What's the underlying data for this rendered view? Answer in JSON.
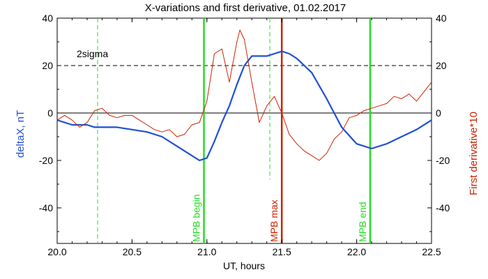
{
  "chart_data": {
    "type": "line",
    "title": "X-variations and first derivative, 01.02.2017",
    "xlabel": "UT, hours",
    "ylabel_left": "deltaX, nT",
    "ylabel_right": "First derivative*10",
    "xlim": [
      20.0,
      22.5
    ],
    "ylim": [
      -55,
      40
    ],
    "xticks": [
      "20.0",
      "20.5",
      "21.0",
      "21.5",
      "22.0",
      "22.5"
    ],
    "yticks_left": [
      "-40",
      "-20",
      "0",
      "20",
      "40"
    ],
    "yticks_right": [
      "-40",
      "-20",
      "0",
      "20",
      "40"
    ],
    "colors": {
      "deltaX": "#1f4fd6",
      "derivative": "#cc2200",
      "green": "#22dd22",
      "red_marker": "#cc2200",
      "axes": "#000000"
    },
    "reference_lines": {
      "zero": 0,
      "sigma_level": 20,
      "sigma_label": "2sigma"
    },
    "markers": [
      {
        "x": 20.98,
        "label": "MPB begin",
        "color": "#22dd22",
        "style": "solid"
      },
      {
        "x": 21.5,
        "label": "MPB max",
        "color": "#cc2200",
        "style": "solid"
      },
      {
        "x": 22.09,
        "label": "MPB end",
        "color": "#22dd22",
        "style": "solid"
      }
    ],
    "dashed_verticals": [
      {
        "x": 20.27,
        "color": "#22dd22",
        "ymin": -55,
        "ymax": 40
      },
      {
        "x": 21.42,
        "color": "#22dd22",
        "ymin": -28,
        "ymax": 40
      }
    ],
    "series": [
      {
        "name": "deltaX",
        "x": [
          20.0,
          20.1,
          20.2,
          20.25,
          20.3,
          20.4,
          20.5,
          20.6,
          20.7,
          20.8,
          20.9,
          20.95,
          21.0,
          21.05,
          21.1,
          21.15,
          21.2,
          21.25,
          21.3,
          21.35,
          21.4,
          21.45,
          21.5,
          21.55,
          21.6,
          21.7,
          21.8,
          21.9,
          22.0,
          22.1,
          22.2,
          22.3,
          22.4,
          22.5
        ],
        "values": [
          -3,
          -5,
          -5,
          -6,
          -6,
          -6,
          -7,
          -8,
          -10,
          -14,
          -18,
          -20,
          -19,
          -12,
          -4,
          3,
          12,
          20,
          24,
          24,
          24,
          25,
          26,
          25,
          23,
          17,
          6,
          -6,
          -13,
          -15,
          -13,
          -10,
          -7,
          -3
        ]
      },
      {
        "name": "derivative",
        "x": [
          20.0,
          20.05,
          20.1,
          20.15,
          20.2,
          20.25,
          20.3,
          20.35,
          20.4,
          20.45,
          20.5,
          20.55,
          20.6,
          20.65,
          20.7,
          20.75,
          20.8,
          20.85,
          20.9,
          20.95,
          21.0,
          21.05,
          21.1,
          21.15,
          21.2,
          21.22,
          21.25,
          21.3,
          21.35,
          21.4,
          21.45,
          21.5,
          21.55,
          21.6,
          21.65,
          21.7,
          21.75,
          21.8,
          21.85,
          21.9,
          21.95,
          22.0,
          22.05,
          22.1,
          22.15,
          22.2,
          22.25,
          22.3,
          22.35,
          22.4,
          22.45,
          22.5
        ],
        "values": [
          -3,
          -1,
          -3,
          -6,
          -4,
          1,
          2,
          -1,
          -2,
          -1,
          -1,
          -3,
          -5,
          -7,
          -8,
          -7,
          -10,
          -9,
          -5,
          -4,
          5,
          25,
          27,
          13,
          30,
          35,
          31,
          13,
          -4,
          3,
          7,
          0,
          -9,
          -13,
          -16,
          -18,
          -20,
          -17,
          -11,
          -8,
          -2,
          -1,
          1,
          2,
          3,
          4,
          7,
          6,
          8,
          5,
          9,
          13
        ]
      }
    ]
  }
}
